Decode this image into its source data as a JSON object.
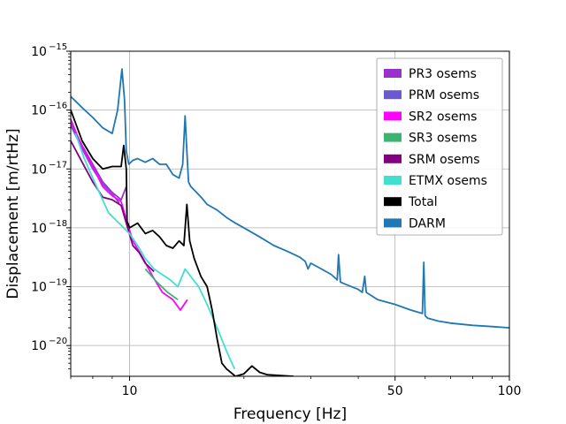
{
  "chart_data": {
    "type": "line",
    "xlabel": "Frequency [Hz]",
    "ylabel": "Displacement [m/rtHz]",
    "xscale": "log",
    "yscale": "log",
    "xlim": [
      7,
      100
    ],
    "ylim": [
      3e-21,
      1e-15
    ],
    "xticks": [
      {
        "value": 10,
        "label": "10"
      },
      {
        "value": 50,
        "label": "50"
      },
      {
        "value": 100,
        "label": "100"
      }
    ],
    "yticks": [
      {
        "value": 1e-20,
        "base": "10",
        "exp": "−20"
      },
      {
        "value": 1e-19,
        "base": "10",
        "exp": "−19"
      },
      {
        "value": 1e-18,
        "base": "10",
        "exp": "−18"
      },
      {
        "value": 1e-17,
        "base": "10",
        "exp": "−17"
      },
      {
        "value": 1e-16,
        "base": "10",
        "exp": "−16"
      },
      {
        "value": 1e-15,
        "base": "10",
        "exp": "−15"
      }
    ],
    "grid": true,
    "legend_position": "top-right",
    "series": [
      {
        "name": "PR3 osems",
        "color": "#9932cc",
        "x": [
          7.0,
          7.5,
          8.0,
          8.5,
          9.0,
          9.5,
          9.8
        ],
        "y": [
          6e-17,
          2.5e-17,
          1.2e-17,
          6e-18,
          4e-18,
          3e-18,
          5e-18
        ]
      },
      {
        "name": "PRM osems",
        "color": "#6a5acd",
        "x": [
          7.0,
          7.5,
          8.0,
          8.5,
          9.0,
          9.4
        ],
        "y": [
          5.5e-17,
          2.2e-17,
          1e-17,
          5.5e-18,
          3.8e-18,
          2.6e-18
        ]
      },
      {
        "name": "SR2 osems",
        "color": "#ff00ff",
        "x": [
          7.0,
          7.5,
          8.0,
          8.5,
          9.0,
          9.5,
          9.8,
          10.2,
          10.8,
          11.5,
          12.2,
          13.0,
          13.6,
          14.2
        ],
        "y": [
          7e-17,
          2.3e-17,
          1.1e-17,
          5e-18,
          3.5e-18,
          2.8e-18,
          1.4e-18,
          6e-19,
          3.2e-19,
          1.5e-19,
          8e-20,
          6e-20,
          4e-20,
          6e-20
        ]
      },
      {
        "name": "SR3 osems",
        "color": "#3cb371",
        "x": [
          11.0,
          11.8,
          12.6,
          13.4
        ],
        "y": [
          2e-19,
          1.2e-19,
          8e-20,
          6e-20
        ]
      },
      {
        "name": "SRM osems",
        "color": "#800080",
        "x": [
          7.0,
          7.5,
          8.0,
          8.5,
          9.0,
          9.5,
          9.8,
          10.2,
          10.6,
          11.0,
          11.6
        ],
        "y": [
          3e-17,
          1.3e-17,
          6e-18,
          3.3e-18,
          3e-18,
          2.4e-18,
          1.2e-18,
          5e-19,
          3.8e-19,
          2.5e-19,
          1.8e-19
        ]
      },
      {
        "name": "ETMX osems",
        "color": "#40e0d0",
        "x": [
          7.2,
          7.6,
          8.0,
          8.4,
          8.8,
          10.0,
          10.5,
          11.0,
          11.6,
          12.2,
          12.8,
          13.4,
          14.0,
          14.6,
          15.2,
          16.0,
          17.0,
          18.0,
          18.6,
          18.9
        ],
        "y": [
          4e-17,
          1.5e-17,
          7e-18,
          3.5e-18,
          1.8e-18,
          8e-19,
          5e-19,
          3e-19,
          2e-19,
          1.6e-19,
          1.3e-19,
          1e-19,
          2e-19,
          1.4e-19,
          1e-19,
          5e-20,
          2e-20,
          8e-21,
          5e-21,
          4e-21
        ]
      },
      {
        "name": "Total",
        "color": "#000000",
        "x": [
          7.0,
          7.5,
          8.0,
          8.5,
          9.0,
          9.5,
          9.65,
          9.8,
          9.85,
          10.0,
          10.5,
          11.0,
          11.5,
          12.0,
          12.5,
          13.0,
          13.5,
          13.9,
          14.15,
          14.4,
          14.8,
          15.4,
          16.0,
          16.5,
          17.0,
          17.5,
          18.0,
          19.0,
          20.0,
          21.0,
          22.0,
          23.0,
          25.0,
          27.0
        ],
        "y": [
          1e-16,
          3e-17,
          1.5e-17,
          1e-17,
          1.1e-17,
          1.1e-17,
          2.5e-17,
          1e-17,
          1.3e-18,
          1e-18,
          1.2e-18,
          8e-19,
          9e-19,
          7e-19,
          5e-19,
          4.5e-19,
          6e-19,
          5e-19,
          2.5e-18,
          6e-19,
          3e-19,
          1.5e-19,
          1e-19,
          4e-20,
          1.3e-20,
          5e-21,
          4e-21,
          3e-21,
          3.3e-21,
          4.5e-21,
          3.5e-21,
          3.2e-21,
          3.1e-21,
          3e-21
        ]
      },
      {
        "name": "DARM",
        "color": "#1f77b4",
        "x": [
          7.0,
          7.5,
          8.0,
          8.5,
          9.0,
          9.3,
          9.55,
          9.7,
          9.8,
          9.95,
          10.2,
          10.5,
          11.0,
          11.5,
          12.0,
          12.5,
          13.0,
          13.5,
          13.8,
          14.0,
          14.15,
          14.3,
          14.5,
          15.0,
          15.5,
          16.0,
          17.0,
          18.0,
          19.0,
          20.0,
          22.0,
          24.0,
          26.0,
          28.0,
          29.0,
          29.5,
          30.0,
          32.0,
          34.0,
          35.2,
          35.5,
          35.9,
          37.0,
          40.0,
          41.0,
          41.6,
          42.0,
          45.0,
          50.0,
          55.0,
          59.0,
          59.5,
          60.0,
          61.0,
          65.0,
          70.0,
          80.0,
          90.0,
          100.0
        ],
        "y": [
          1.7e-16,
          1.1e-16,
          7.5e-17,
          5e-17,
          4e-17,
          1e-16,
          5e-16,
          1.5e-16,
          2e-17,
          1.2e-17,
          1.4e-17,
          1.5e-17,
          1.3e-17,
          1.5e-17,
          1.2e-17,
          1.2e-17,
          8e-18,
          7e-18,
          1.2e-17,
          8e-17,
          2e-17,
          6e-18,
          5e-18,
          4e-18,
          3.2e-18,
          2.5e-18,
          2e-18,
          1.5e-18,
          1.2e-18,
          1e-18,
          7e-19,
          5e-19,
          4e-19,
          3.2e-19,
          2.7e-19,
          2e-19,
          2.5e-19,
          2e-19,
          1.6e-19,
          1.3e-19,
          3.5e-19,
          1.2e-19,
          1.1e-19,
          9e-20,
          8e-20,
          1.5e-19,
          8e-20,
          6e-20,
          5e-20,
          4e-20,
          3.5e-20,
          2.6e-19,
          3.2e-20,
          2.9e-20,
          2.6e-20,
          2.4e-20,
          2.2e-20,
          2.1e-20,
          2e-20
        ]
      }
    ]
  }
}
